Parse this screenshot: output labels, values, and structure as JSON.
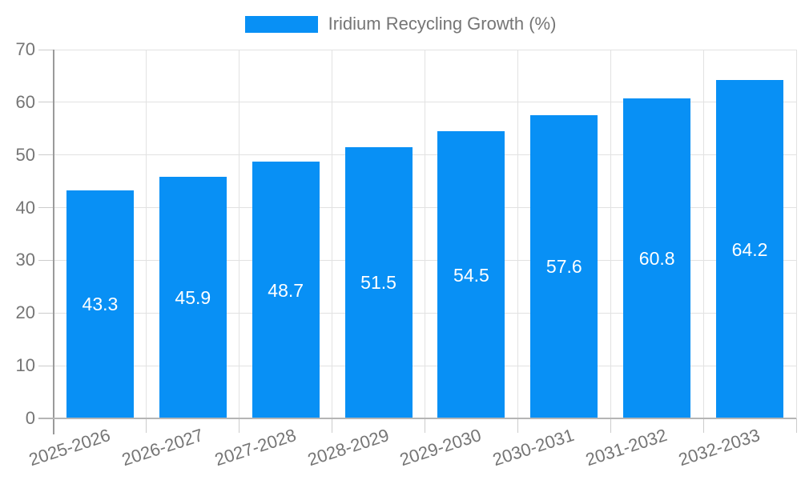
{
  "chart_data": {
    "type": "bar",
    "title": "",
    "legend": {
      "label": "Iridium Recycling Growth (%)",
      "position": "top"
    },
    "categories": [
      "2025-2026",
      "2026-2027",
      "2027-2028",
      "2028-2029",
      "2029-2030",
      "2030-2031",
      "2031-2032",
      "2032-2033"
    ],
    "series": [
      {
        "name": "Iridium Recycling Growth (%)",
        "values": [
          43.3,
          45.9,
          48.7,
          51.5,
          54.5,
          57.6,
          60.8,
          64.2
        ]
      }
    ],
    "value_labels": [
      "43.3",
      "45.9",
      "48.7",
      "51.5",
      "54.5",
      "57.6",
      "60.8",
      "64.2"
    ],
    "xlabel": "",
    "ylabel": "",
    "ylim": [
      0,
      70
    ],
    "yticks": [
      0,
      10,
      20,
      30,
      40,
      50,
      60,
      70
    ],
    "grid": true,
    "value_label_position": "inside-center",
    "colors": {
      "bar": "#0890F5",
      "grid": "#e2e2e2",
      "y_axis_line": "#9a9a9a",
      "x_axis_line": "#b5b5b5",
      "tick": "#cccccc",
      "text": "#757575",
      "value_text": "#ffffff",
      "background": "#ffffff"
    }
  }
}
